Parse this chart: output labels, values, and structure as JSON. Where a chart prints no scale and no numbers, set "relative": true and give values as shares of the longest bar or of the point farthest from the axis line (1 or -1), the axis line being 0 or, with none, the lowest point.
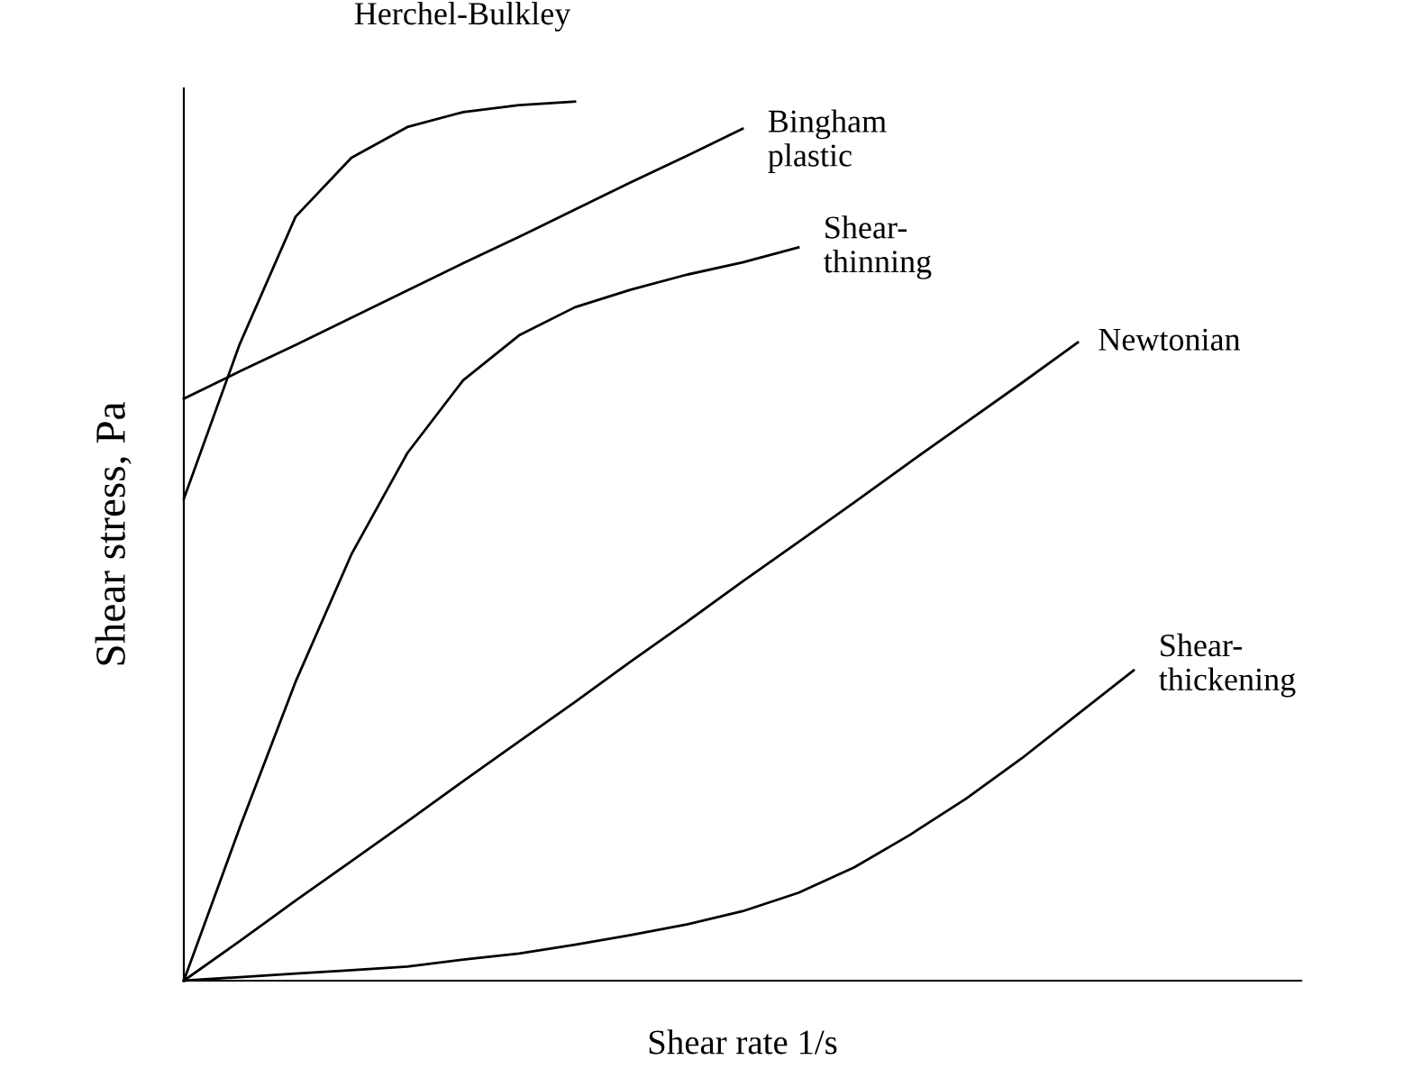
{
  "chart_data": {
    "type": "line",
    "relative": true,
    "xlabel": "Shear rate 1/s",
    "ylabel": "Shear stress, Pa",
    "legend": false,
    "marker": "none",
    "line_style": "solid",
    "categories": [
      null,
      null,
      null,
      null,
      null,
      null,
      null,
      null,
      null,
      null,
      null,
      null,
      null,
      null,
      null,
      null,
      null,
      null,
      null,
      null,
      null
    ],
    "series": [
      {
        "name": "Herchel-Bulkley",
        "color": "#000000",
        "values": [
          0.548,
          0.724,
          0.869,
          0.936,
          0.971,
          0.988,
          0.996,
          1.0,
          null,
          null,
          null,
          null,
          null,
          null,
          null,
          null,
          null,
          null,
          null,
          null,
          null
        ]
      },
      {
        "name": "Bingham\nplastic",
        "color": "#000000",
        "values": [
          0.662,
          0.693,
          0.723,
          0.754,
          0.785,
          0.816,
          0.846,
          0.877,
          0.908,
          0.938,
          0.969,
          null,
          null,
          null,
          null,
          null,
          null,
          null,
          null,
          null,
          null
        ]
      },
      {
        "name": "Shear-\nthinning",
        "color": "#000000",
        "values": [
          0,
          0.174,
          0.34,
          0.485,
          0.6,
          0.683,
          0.734,
          0.766,
          0.786,
          0.803,
          0.817,
          0.834,
          null,
          null,
          null,
          null,
          null,
          null,
          null,
          null,
          null
        ]
      },
      {
        "name": "Newtonian",
        "color": "#000000",
        "values": [
          0,
          0.045,
          0.091,
          0.136,
          0.181,
          0.227,
          0.272,
          0.317,
          0.363,
          0.408,
          0.454,
          0.499,
          0.544,
          0.59,
          0.635,
          0.68,
          0.726,
          null,
          null,
          null,
          null
        ]
      },
      {
        "name": "Shear-\nthickening",
        "color": "#000000",
        "values": [
          0,
          0.004,
          0.008,
          0.012,
          0.016,
          0.024,
          0.031,
          0.041,
          0.052,
          0.064,
          0.079,
          0.1,
          0.129,
          0.166,
          0.207,
          0.253,
          0.303,
          0.353,
          null,
          null,
          null
        ]
      }
    ]
  }
}
